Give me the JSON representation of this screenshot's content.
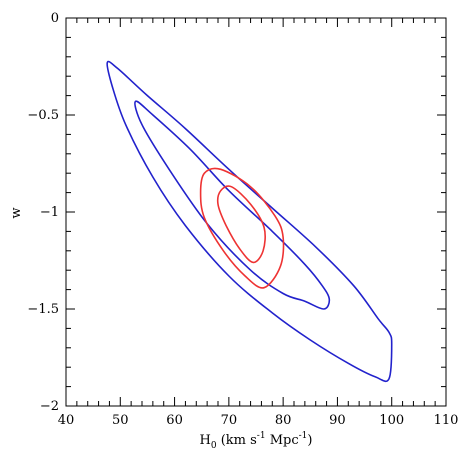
{
  "chart_data": {
    "type": "line",
    "title": "",
    "xlabel": {
      "main": "H",
      "sub": "0",
      "rest_before": " (km s",
      "sup1": "-1",
      "mid": " Mpc",
      "sup2": "-1",
      "end": ")"
    },
    "ylabel": "w",
    "xlim": [
      40,
      110
    ],
    "ylim": [
      -2,
      0
    ],
    "xticks": [
      "40",
      "50",
      "60",
      "70",
      "80",
      "90",
      "100",
      "110"
    ],
    "yticks": [
      "0",
      "−0.5",
      "−1",
      "−1.5",
      "−2"
    ],
    "ytick_values": [
      0,
      -0.5,
      -1,
      -1.5,
      -2
    ],
    "xtick_values": [
      40,
      50,
      60,
      70,
      80,
      90,
      100,
      110
    ],
    "grid": false,
    "series": [
      {
        "color": "#2222cc",
        "closed": true,
        "points": [
          [
            47.6,
            -0.23
          ],
          [
            49.5,
            -0.26
          ],
          [
            55,
            -0.4
          ],
          [
            62,
            -0.57
          ],
          [
            70,
            -0.78
          ],
          [
            78,
            -0.98
          ],
          [
            86,
            -1.18
          ],
          [
            93,
            -1.38
          ],
          [
            97.5,
            -1.55
          ],
          [
            99.5,
            -1.62
          ],
          [
            100,
            -1.68
          ],
          [
            99.5,
            -1.86
          ],
          [
            97,
            -1.85
          ],
          [
            92,
            -1.78
          ],
          [
            85,
            -1.66
          ],
          [
            78,
            -1.52
          ],
          [
            70,
            -1.33
          ],
          [
            62,
            -1.07
          ],
          [
            56,
            -0.82
          ],
          [
            51,
            -0.55
          ],
          [
            48.5,
            -0.35
          ]
        ]
      },
      {
        "color": "#2222cc",
        "closed": true,
        "points": [
          [
            52.8,
            -0.43
          ],
          [
            56,
            -0.5
          ],
          [
            63,
            -0.68
          ],
          [
            70,
            -0.89
          ],
          [
            78,
            -1.1
          ],
          [
            84,
            -1.27
          ],
          [
            87.2,
            -1.38
          ],
          [
            88.5,
            -1.45
          ],
          [
            87.5,
            -1.5
          ],
          [
            84,
            -1.46
          ],
          [
            80,
            -1.42
          ],
          [
            74,
            -1.3
          ],
          [
            66,
            -1.06
          ],
          [
            59,
            -0.78
          ],
          [
            54,
            -0.55
          ]
        ]
      },
      {
        "color": "#ee3333",
        "closed": true,
        "points": [
          [
            65.5,
            -0.8
          ],
          [
            68.5,
            -0.78
          ],
          [
            74,
            -0.87
          ],
          [
            78.5,
            -1.02
          ],
          [
            80,
            -1.13
          ],
          [
            79.5,
            -1.28
          ],
          [
            76.5,
            -1.39
          ],
          [
            73,
            -1.33
          ],
          [
            69,
            -1.2
          ],
          [
            65.5,
            -1.03
          ],
          [
            64.8,
            -0.9
          ]
        ]
      },
      {
        "color": "#ee3333",
        "closed": true,
        "points": [
          [
            68.5,
            -0.89
          ],
          [
            70.5,
            -0.87
          ],
          [
            74,
            -0.96
          ],
          [
            76.5,
            -1.08
          ],
          [
            76.3,
            -1.2
          ],
          [
            74.5,
            -1.26
          ],
          [
            72,
            -1.19
          ],
          [
            69.5,
            -1.07
          ],
          [
            68,
            -0.96
          ]
        ]
      }
    ]
  }
}
